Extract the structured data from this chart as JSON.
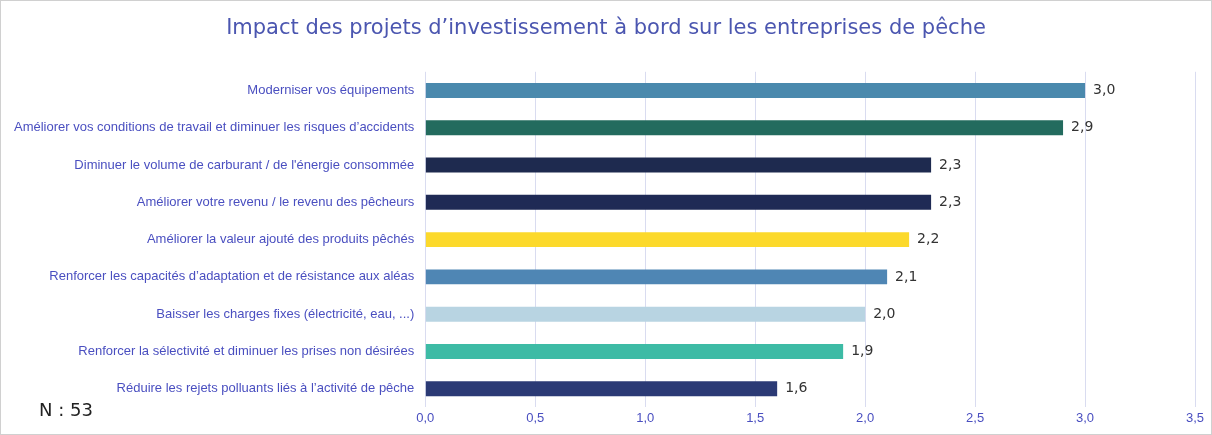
{
  "chart_data": {
    "type": "bar",
    "orientation": "horizontal",
    "title": "Impact des projets d’investissement à bord sur les entreprises de pêche",
    "categories": [
      "Moderniser vos équipements",
      "Améliorer vos conditions de travail et diminuer les risques d’accidents",
      "Diminuer le volume de carburant / de l'énergie consommée",
      "Améliorer votre revenu / le revenu des pêcheurs",
      "Améliorer la valeur ajouté des produits pêchés",
      "Renforcer les capacités d’adaptation et de résistance aux aléas",
      "Baisser les charges fixes (électricité, eau, ...)",
      "Renforcer la sélectivité et diminuer les prises non désirées",
      "Réduire les rejets polluants liés à l’activité de pêche"
    ],
    "values": [
      3.0,
      2.9,
      2.3,
      2.3,
      2.2,
      2.1,
      2.0,
      1.9,
      1.6
    ],
    "value_labels": [
      "3,0",
      "2,9",
      "2,3",
      "2,3",
      "2,2",
      "2,1",
      "2,0",
      "1,9",
      "1,6"
    ],
    "colors": [
      "#4a89ad",
      "#236b5e",
      "#1e2a4f",
      "#1f2a55",
      "#fcd92b",
      "#4f86b4",
      "#b8d4e2",
      "#3dbba5",
      "#2b3a75"
    ],
    "xlim": [
      0,
      3.5
    ],
    "xticks": [
      {
        "value": 0,
        "label": "0,0"
      },
      {
        "value": 0.5,
        "label": "0,5"
      },
      {
        "value": 1,
        "label": "1,0"
      },
      {
        "value": 1.5,
        "label": "1,5"
      },
      {
        "value": 2,
        "label": "2,0"
      },
      {
        "value": 2.5,
        "label": "2,5"
      },
      {
        "value": 3,
        "label": "3,0"
      },
      {
        "value": 3.5,
        "label": "3,5"
      }
    ],
    "grid": "x",
    "legend": false,
    "annotations": [
      "N : 53"
    ]
  }
}
